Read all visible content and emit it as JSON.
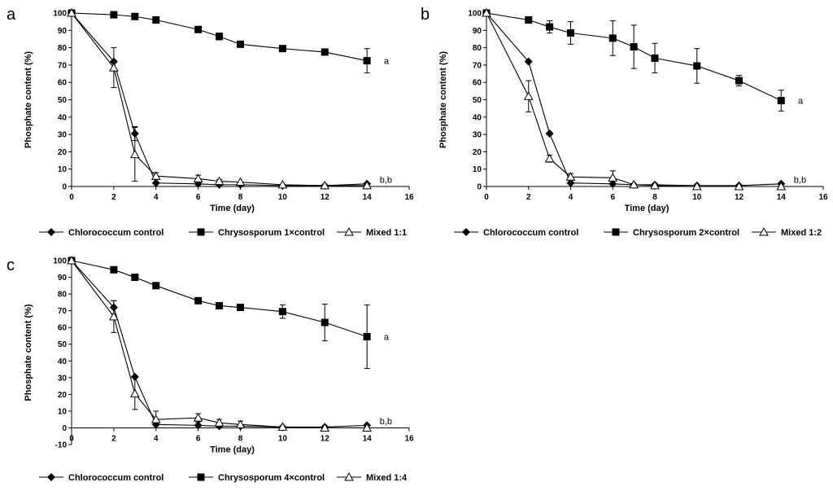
{
  "chart_data": [
    {
      "type": "line",
      "panel": "a",
      "xlabel": "Time (day)",
      "ylabel": "Phosphate content (%)",
      "xlim": [
        0,
        16
      ],
      "ylim": [
        0,
        100
      ],
      "xticks": [
        "0",
        "2",
        "4",
        "6",
        "8",
        "10",
        "12",
        "14",
        "16"
      ],
      "yticks": [
        "0",
        "10",
        "20",
        "30",
        "40",
        "50",
        "60",
        "70",
        "80",
        "90",
        "100"
      ],
      "series": [
        {
          "name": "Chlorococcum control",
          "marker": "diamond",
          "x": [
            0,
            2,
            3,
            4,
            6,
            7,
            8,
            10,
            12,
            14
          ],
          "y": [
            100,
            72,
            30.5,
            2,
            1.5,
            1,
            1,
            0.5,
            0.5,
            1.5
          ],
          "err": [
            0,
            0,
            4,
            0,
            0,
            0,
            0,
            0,
            0,
            0
          ]
        },
        {
          "name": "Chrysosporum 1×control",
          "marker": "square",
          "x": [
            0,
            2,
            3,
            4,
            6,
            7,
            8,
            10,
            12,
            14
          ],
          "y": [
            100,
            99,
            98,
            96,
            90.5,
            86.5,
            82,
            79.5,
            77.5,
            72.5
          ],
          "err": [
            0,
            0,
            0,
            0,
            0,
            2,
            0,
            0,
            0,
            7
          ]
        },
        {
          "name": "Mixed 1:1",
          "marker": "triangle",
          "x": [
            0,
            2,
            3,
            4,
            6,
            7,
            8,
            10,
            12,
            14
          ],
          "y": [
            100,
            68.5,
            18.5,
            6,
            4.5,
            3,
            2.5,
            1,
            0.5,
            0.5
          ],
          "err": [
            0,
            11.5,
            15.5,
            2,
            2,
            1,
            0,
            0,
            0,
            0
          ]
        }
      ],
      "annotations": [
        {
          "text": "a",
          "x": 14.8,
          "y": 72.5
        },
        {
          "text": "b,b",
          "x": 14.6,
          "y": 4
        }
      ]
    },
    {
      "type": "line",
      "panel": "b",
      "xlabel": "Time (day)",
      "ylabel": "Phosphate content (%)",
      "xlim": [
        0,
        16
      ],
      "ylim": [
        0,
        100
      ],
      "xticks": [
        "0",
        "2",
        "4",
        "6",
        "8",
        "10",
        "12",
        "14",
        "16"
      ],
      "yticks": [
        "0",
        "10",
        "20",
        "30",
        "40",
        "50",
        "60",
        "70",
        "80",
        "90",
        "100"
      ],
      "series": [
        {
          "name": "Chlorococcum control",
          "marker": "diamond",
          "x": [
            0,
            2,
            3,
            4,
            6,
            7,
            8,
            10,
            12,
            14
          ],
          "y": [
            100,
            72,
            30.5,
            2,
            1.5,
            1,
            1,
            0.5,
            0.5,
            1.5
          ],
          "err": [
            0,
            0,
            0,
            0,
            0,
            0,
            0,
            0,
            0,
            0
          ]
        },
        {
          "name": "Chrysosporum 2×control",
          "marker": "square",
          "x": [
            0,
            2,
            3,
            4,
            6,
            7,
            8,
            10,
            12,
            14
          ],
          "y": [
            100,
            96,
            92,
            88.5,
            85.5,
            80.5,
            74,
            69.5,
            61,
            49.5
          ],
          "err": [
            0,
            0,
            3.5,
            6.5,
            10,
            12.5,
            8.5,
            10,
            3,
            6
          ]
        },
        {
          "name": "Mixed 1:2",
          "marker": "triangle",
          "x": [
            0,
            2,
            3,
            4,
            6,
            7,
            8,
            10,
            12,
            14
          ],
          "y": [
            100,
            52,
            16,
            5.5,
            5,
            1,
            0.5,
            0,
            0,
            0
          ],
          "err": [
            0,
            9,
            2,
            2,
            4,
            0,
            0,
            0,
            0,
            0
          ]
        }
      ],
      "annotations": [
        {
          "text": "a",
          "x": 14.8,
          "y": 49.5
        },
        {
          "text": "b,b",
          "x": 14.6,
          "y": 4
        }
      ]
    },
    {
      "type": "line",
      "panel": "c",
      "xlabel": "Time (day)",
      "ylabel": "Phosphate content (%)",
      "xlim": [
        0,
        16
      ],
      "ylim": [
        -10,
        100
      ],
      "xticks": [
        "0",
        "2",
        "4",
        "6",
        "8",
        "10",
        "12",
        "14",
        "16"
      ],
      "yticks": [
        "-10",
        "0",
        "10",
        "20",
        "30",
        "40",
        "50",
        "60",
        "70",
        "80",
        "90",
        "100"
      ],
      "series": [
        {
          "name": "Chlorococcum control",
          "marker": "diamond",
          "x": [
            0,
            2,
            3,
            4,
            6,
            7,
            8,
            10,
            12,
            14
          ],
          "y": [
            100,
            72,
            30.5,
            2,
            1.5,
            1,
            1,
            0.5,
            0.5,
            1.5
          ],
          "err": [
            0,
            4,
            0,
            0,
            0,
            0,
            0,
            0,
            0,
            0
          ]
        },
        {
          "name": "Chrysosporum 4×control",
          "marker": "square",
          "x": [
            0,
            2,
            3,
            4,
            6,
            7,
            8,
            10,
            12,
            14
          ],
          "y": [
            100,
            94.5,
            90,
            85,
            76,
            73,
            72,
            69.5,
            63,
            54.5
          ],
          "err": [
            0,
            1.5,
            0,
            0,
            0,
            0,
            0,
            4,
            11,
            19
          ]
        },
        {
          "name": "Mixed 1:4",
          "marker": "triangle",
          "x": [
            0,
            2,
            3,
            4,
            6,
            7,
            8,
            10,
            12,
            14
          ],
          "y": [
            100,
            66.5,
            20.5,
            5,
            6,
            3,
            2,
            0.5,
            0,
            0
          ],
          "err": [
            0,
            9.5,
            9.5,
            5,
            2.5,
            2,
            2,
            0,
            0,
            0
          ]
        }
      ],
      "annotations": [
        {
          "text": "a",
          "x": 14.8,
          "y": 54.5
        },
        {
          "text": "b,b",
          "x": 14.6,
          "y": 4
        }
      ]
    }
  ]
}
